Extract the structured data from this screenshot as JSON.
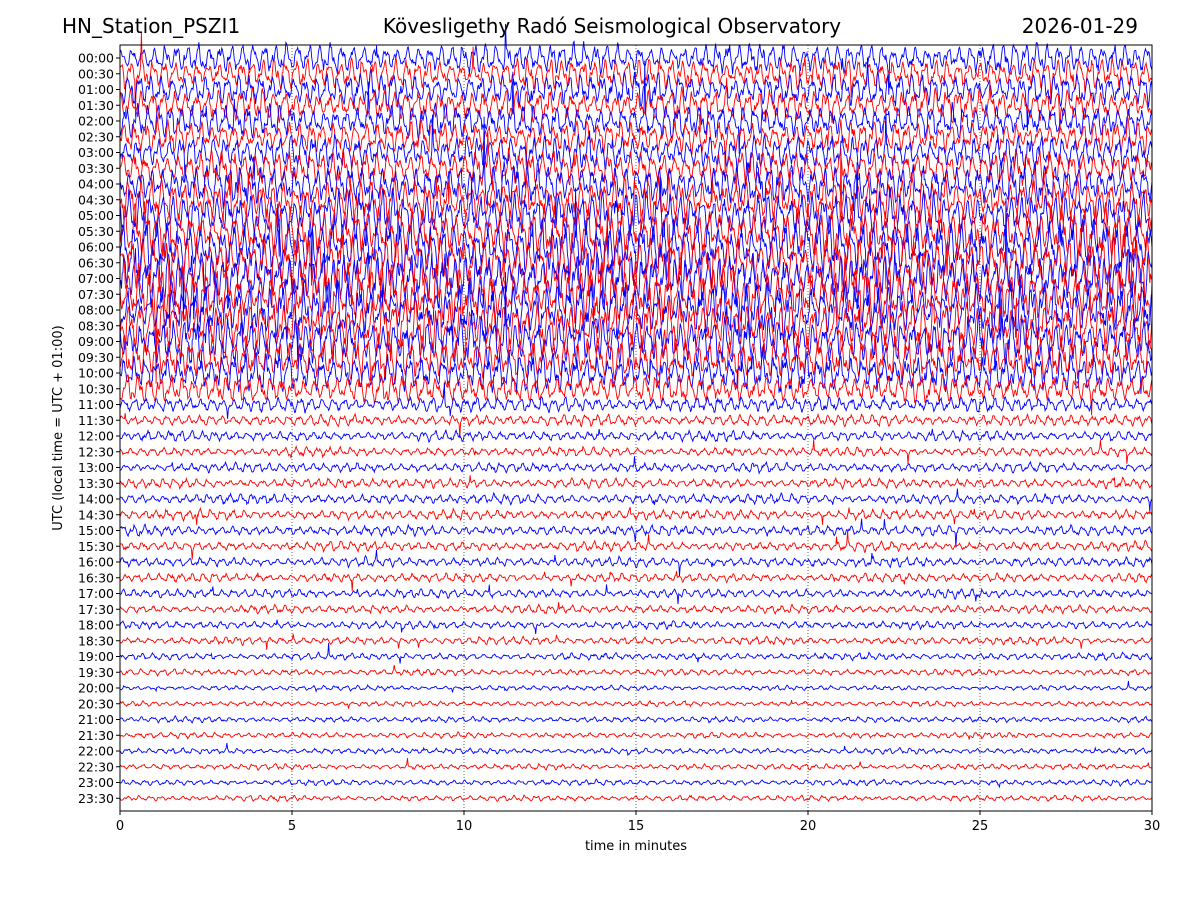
{
  "header": {
    "station": "HN_Station_PSZI1",
    "observatory": "Kövesligethy Radó Seismological Observatory",
    "date": "2026-01-29"
  },
  "chart_data": {
    "type": "line",
    "title": "Kövesligethy Radó Seismological Observatory",
    "xlabel": "time in minutes",
    "ylabel": "UTC (local time = UTC + 01:00)",
    "xlim": [
      0,
      30
    ],
    "x_ticks": [
      0,
      5,
      10,
      15,
      20,
      25,
      30
    ],
    "x_tick_labels": [
      "0",
      "5",
      "10",
      "15",
      "20",
      "25",
      "30"
    ],
    "grid": "vertical dotted at x ticks",
    "colors": [
      "#ff0000",
      "#0000ff"
    ],
    "row_colors_pattern": "blue for rows starting on the hour, red for rows starting on the half hour",
    "rows": [
      "00:00",
      "00:30",
      "01:00",
      "01:30",
      "02:00",
      "02:30",
      "03:00",
      "03:30",
      "04:00",
      "04:30",
      "05:00",
      "05:30",
      "06:00",
      "06:30",
      "07:00",
      "07:30",
      "08:00",
      "08:30",
      "09:00",
      "09:30",
      "10:00",
      "10:30",
      "11:00",
      "11:30",
      "12:00",
      "12:30",
      "13:00",
      "13:30",
      "14:00",
      "14:30",
      "15:00",
      "15:30",
      "16:00",
      "16:30",
      "17:00",
      "17:30",
      "18:00",
      "18:30",
      "19:00",
      "19:30",
      "20:00",
      "20:30",
      "21:00",
      "21:30",
      "22:00",
      "22:30",
      "23:00",
      "23:30"
    ],
    "relative_amplitude": [
      2.4,
      2.4,
      2.6,
      2.5,
      2.6,
      2.5,
      2.7,
      2.8,
      3.2,
      3.4,
      3.8,
      4.0,
      4.2,
      4.3,
      4.3,
      4.3,
      4.2,
      4.0,
      3.8,
      3.6,
      3.0,
      2.2,
      1.2,
      0.9,
      0.8,
      0.7,
      0.75,
      0.75,
      0.8,
      0.8,
      0.8,
      0.75,
      0.75,
      0.7,
      0.7,
      0.65,
      0.6,
      0.6,
      0.55,
      0.5,
      0.4,
      0.4,
      0.45,
      0.45,
      0.45,
      0.45,
      0.45,
      0.45
    ]
  }
}
